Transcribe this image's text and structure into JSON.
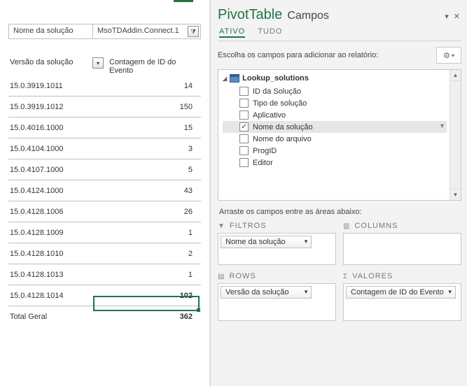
{
  "colors": {
    "accent": "#217346"
  },
  "pivot": {
    "filter": {
      "label": "Nome da solução",
      "value": "MsoTDAddin.Connect.1"
    },
    "headers": {
      "rowField": "Versão da solução",
      "valueField": "Contagem de ID do Evento"
    },
    "rows": [
      {
        "label": "15.0.3919.1011",
        "value": "14"
      },
      {
        "label": "15.0.3919.1012",
        "value": "150"
      },
      {
        "label": "15.0.4016.1000",
        "value": "15"
      },
      {
        "label": "15.0.4104.1000",
        "value": "3"
      },
      {
        "label": "15.0.4107.1000",
        "value": "5"
      },
      {
        "label": "15.0.4124.1000",
        "value": "43"
      },
      {
        "label": "15.0.4128.1006",
        "value": "26"
      },
      {
        "label": "15.0.4128.1009",
        "value": "1"
      },
      {
        "label": "15.0.4128.1010",
        "value": "2"
      },
      {
        "label": "15.0.4128.1013",
        "value": "1"
      },
      {
        "label": "15.0.4128.1014",
        "value": "102"
      }
    ],
    "total": {
      "label": "Total Geral",
      "value": "362"
    }
  },
  "panel": {
    "title1": "PivotTable",
    "title2": "Campos",
    "tabs": {
      "active": "ATIVO",
      "all": "TUDO"
    },
    "instruction": "Escolha os campos para adicionar ao relatório:",
    "table": "Lookup_solutions",
    "fields": [
      {
        "label": "ID da Solução",
        "checked": false
      },
      {
        "label": "Tipo de solução",
        "checked": false
      },
      {
        "label": "Aplicativo",
        "checked": false
      },
      {
        "label": "Nome da solução",
        "checked": true
      },
      {
        "label": "Nome do arquivo",
        "checked": false
      },
      {
        "label": "ProgID",
        "checked": false
      },
      {
        "label": "Editor",
        "checked": false
      }
    ],
    "dragInstruction": "Arraste os campos entre as áreas abaixo:",
    "areas": {
      "filters": {
        "title": "FILTROS",
        "chip": "Nome da solução"
      },
      "columns": {
        "title": "COLUMNS"
      },
      "rows": {
        "title": "ROWS",
        "chip": "Versão da solução"
      },
      "values": {
        "title": "VALORES",
        "chip": "Contagem de ID do Evento"
      }
    }
  }
}
